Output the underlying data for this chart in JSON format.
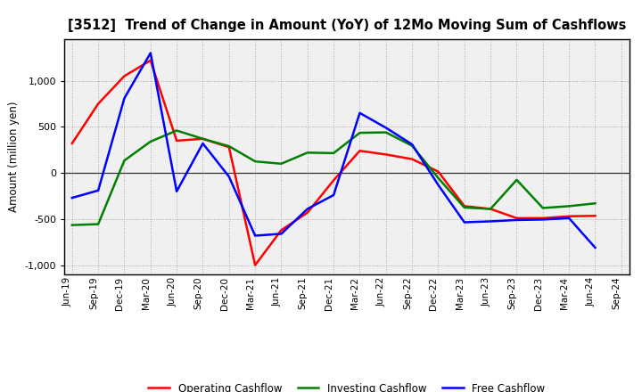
{
  "title": "[3512]  Trend of Change in Amount (YoY) of 12Mo Moving Sum of Cashflows",
  "ylabel": "Amount (million yen)",
  "x_labels": [
    "Jun-19",
    "Sep-19",
    "Dec-19",
    "Mar-20",
    "Jun-20",
    "Sep-20",
    "Dec-20",
    "Mar-21",
    "Jun-21",
    "Sep-21",
    "Dec-21",
    "Mar-22",
    "Jun-22",
    "Sep-22",
    "Dec-22",
    "Mar-23",
    "Jun-23",
    "Sep-23",
    "Dec-23",
    "Mar-24",
    "Jun-24",
    "Sep-24"
  ],
  "operating": [
    320,
    750,
    1050,
    1220,
    350,
    370,
    280,
    -1000,
    -620,
    -430,
    -80,
    240,
    200,
    150,
    15,
    -360,
    -390,
    -490,
    -490,
    -470,
    -465,
    null
  ],
  "investing": [
    -565,
    -555,
    135,
    340,
    460,
    370,
    290,
    125,
    100,
    220,
    215,
    435,
    440,
    295,
    -55,
    -375,
    -390,
    -75,
    -380,
    -360,
    -330,
    null
  ],
  "free": [
    -270,
    -190,
    810,
    1300,
    -200,
    320,
    -40,
    -680,
    -660,
    -390,
    -240,
    650,
    490,
    310,
    -130,
    -535,
    -525,
    -510,
    -505,
    -490,
    -810,
    null
  ],
  "operating_color": "#ff0000",
  "investing_color": "#008000",
  "free_color": "#0000ff",
  "ylim": [
    -1100,
    1450
  ],
  "yticks": [
    -1000,
    -500,
    0,
    500,
    1000
  ],
  "background_color": "#ffffff",
  "plot_bg_color": "#f0f0f0",
  "grid_color": "#888888"
}
